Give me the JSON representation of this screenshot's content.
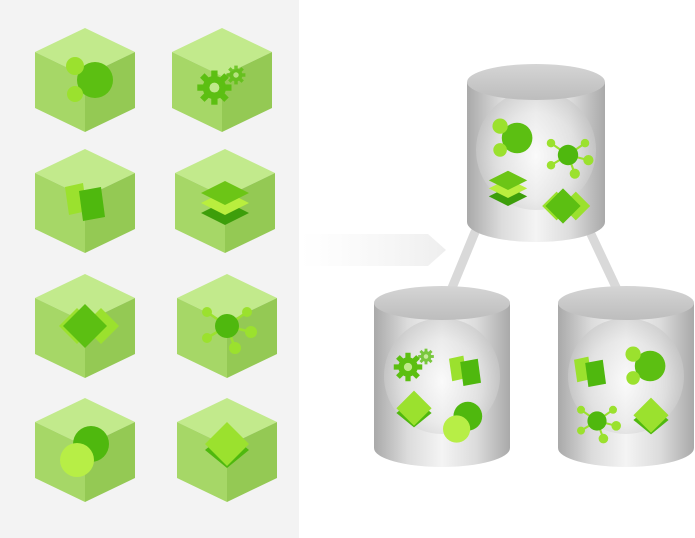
{
  "diagram": {
    "left_panel": {
      "cubes": [
        {
          "icon": "bubbles-icon"
        },
        {
          "icon": "gears-icon"
        },
        {
          "icon": "cards-icon"
        },
        {
          "icon": "layers-icon"
        },
        {
          "icon": "diamonds-icon"
        },
        {
          "icon": "network-icon"
        },
        {
          "icon": "circles-icon"
        },
        {
          "icon": "stacked-diamond-icon"
        }
      ]
    },
    "arrow": {
      "icon": "arrow-right-icon"
    },
    "databases": [
      {
        "name": "top",
        "icons": [
          "bubbles-icon",
          "network-icon",
          "layers-icon",
          "diamonds-icon"
        ]
      },
      {
        "name": "bottom-left",
        "icons": [
          "gears-icon",
          "cards-icon",
          "stacked-diamond-icon",
          "circles-icon"
        ]
      },
      {
        "name": "bottom-right",
        "icons": [
          "cards-icon",
          "bubbles-icon",
          "network-icon",
          "stacked-diamond-icon"
        ]
      }
    ],
    "colors": {
      "panel_bg": "#f3f3f3",
      "cube_light": "#b6e57a",
      "cube_mid": "#9fd05e",
      "cube_dark": "#8cc04f",
      "icon_green": "#6cc516",
      "icon_dark": "#4aa80a",
      "cylinder_gray": "#c8c8c8",
      "connector": "#d9d9d9"
    }
  }
}
